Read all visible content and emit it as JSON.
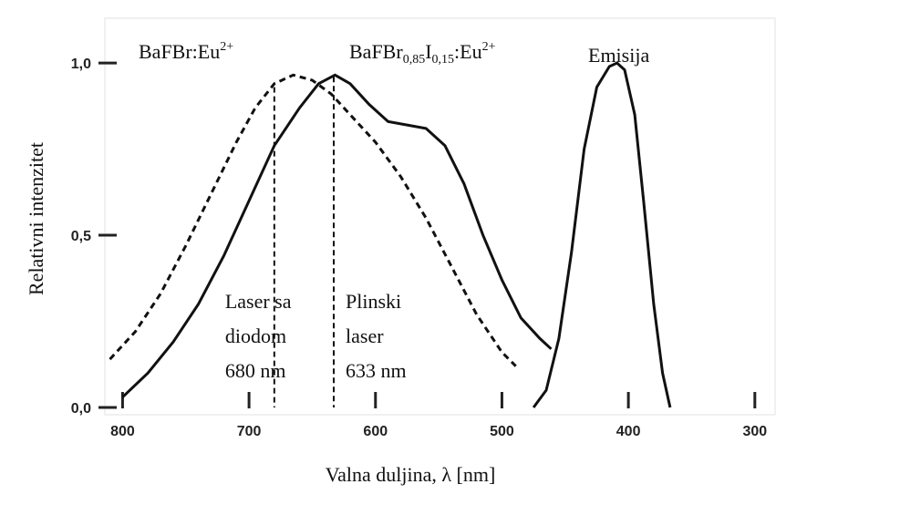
{
  "chart_data": {
    "type": "line",
    "x_label": "Valna duljina, λ [nm]",
    "y_label": "Relativni intenzitet",
    "xlim": [
      814,
      284
    ],
    "ylim": [
      0,
      1.13
    ],
    "xticks": [
      800,
      700,
      600,
      500,
      400,
      300
    ],
    "yticks": [
      {
        "value": 0,
        "label": "0,0"
      },
      {
        "value": 0.5,
        "label": "0,5"
      },
      {
        "value": 1,
        "label": "1,0"
      }
    ],
    "series": [
      {
        "label": [
          {
            "t": "BaFBr:Eu"
          },
          {
            "t": "2+",
            "s": "sup"
          }
        ],
        "color": "#111",
        "style": "dashed",
        "x": [
          810,
          790,
          770,
          750,
          730,
          710,
          695,
          680,
          665,
          650,
          635,
          620,
          600,
          580,
          560,
          540,
          520,
          500,
          489
        ],
        "values": [
          0.14,
          0.22,
          0.33,
          0.47,
          0.62,
          0.77,
          0.87,
          0.94,
          0.965,
          0.95,
          0.91,
          0.85,
          0.77,
          0.67,
          0.55,
          0.41,
          0.27,
          0.16,
          0.12
        ]
      },
      {
        "label": [
          {
            "t": "BaFBr"
          },
          {
            "t": "0,85",
            "s": "sub"
          },
          {
            "t": "I"
          },
          {
            "t": "0,15",
            "s": "sub"
          },
          {
            "t": ":Eu"
          },
          {
            "t": "2+",
            "s": "sup"
          }
        ],
        "color": "#111",
        "style": "solid",
        "x": [
          800,
          780,
          760,
          740,
          720,
          700,
          680,
          660,
          645,
          632,
          620,
          605,
          590,
          575,
          560,
          545,
          530,
          515,
          500,
          485,
          470,
          461
        ],
        "values": [
          0.03,
          0.1,
          0.19,
          0.3,
          0.44,
          0.6,
          0.76,
          0.87,
          0.94,
          0.965,
          0.94,
          0.88,
          0.83,
          0.82,
          0.81,
          0.76,
          0.65,
          0.5,
          0.37,
          0.26,
          0.2,
          0.17
        ]
      },
      {
        "label": [
          {
            "t": "Emisija"
          }
        ],
        "color": "#111",
        "style": "solid",
        "x": [
          475,
          465,
          455,
          445,
          435,
          425,
          415,
          409,
          403,
          395,
          388,
          380,
          373,
          367
        ],
        "values": [
          0,
          0.05,
          0.2,
          0.45,
          0.75,
          0.93,
          0.99,
          1.0,
          0.98,
          0.85,
          0.6,
          0.3,
          0.1,
          0
        ]
      }
    ],
    "markers": [
      {
        "x": 680,
        "top": 0.93,
        "lines": [
          "Laser sa",
          "diodom",
          "680 nm"
        ]
      },
      {
        "x": 633,
        "top": 0.96,
        "lines": [
          "Plinski",
          "laser",
          "633 nm"
        ]
      }
    ]
  }
}
